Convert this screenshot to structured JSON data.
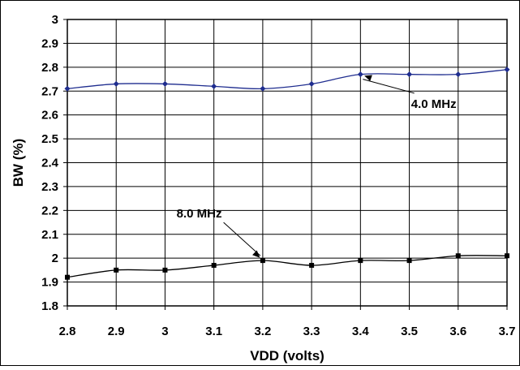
{
  "chart_data": {
    "type": "line",
    "xlabel": "VDD (volts)",
    "ylabel": "BW (%)",
    "xlim": [
      2.8,
      3.7
    ],
    "ylim": [
      1.8,
      3.0
    ],
    "x_ticks": [
      "2.8",
      "2.9",
      "3",
      "3.1",
      "3.2",
      "3.3",
      "3.4",
      "3.5",
      "3.6",
      "3.7"
    ],
    "y_ticks": [
      "1.8",
      "1.9",
      "2",
      "2.1",
      "2.2",
      "2.3",
      "2.4",
      "2.5",
      "2.6",
      "2.7",
      "2.8",
      "2.9",
      "3"
    ],
    "grid": true,
    "x": [
      2.8,
      2.9,
      3.0,
      3.1,
      3.2,
      3.3,
      3.4,
      3.5,
      3.6,
      3.7
    ],
    "series": [
      {
        "values": [
          2.71,
          2.73,
          2.73,
          2.72,
          2.71,
          2.73,
          2.77,
          2.77,
          2.77,
          2.79
        ],
        "color": "#1f2d8f",
        "marker": "diamond"
      },
      {
        "values": [
          1.92,
          1.95,
          1.95,
          1.97,
          1.99,
          1.97,
          1.99,
          1.99,
          2.01,
          2.01
        ],
        "color": "#000000",
        "marker": "square"
      }
    ],
    "annotations": [
      {
        "text": "4.0 MHz",
        "x": 3.55,
        "y": 2.63,
        "arrow_to": [
          3.4,
          2.77
        ]
      },
      {
        "text": "8.0 MHz",
        "x": 3.07,
        "y": 2.17,
        "arrow_to": [
          3.2,
          1.99
        ]
      }
    ]
  }
}
